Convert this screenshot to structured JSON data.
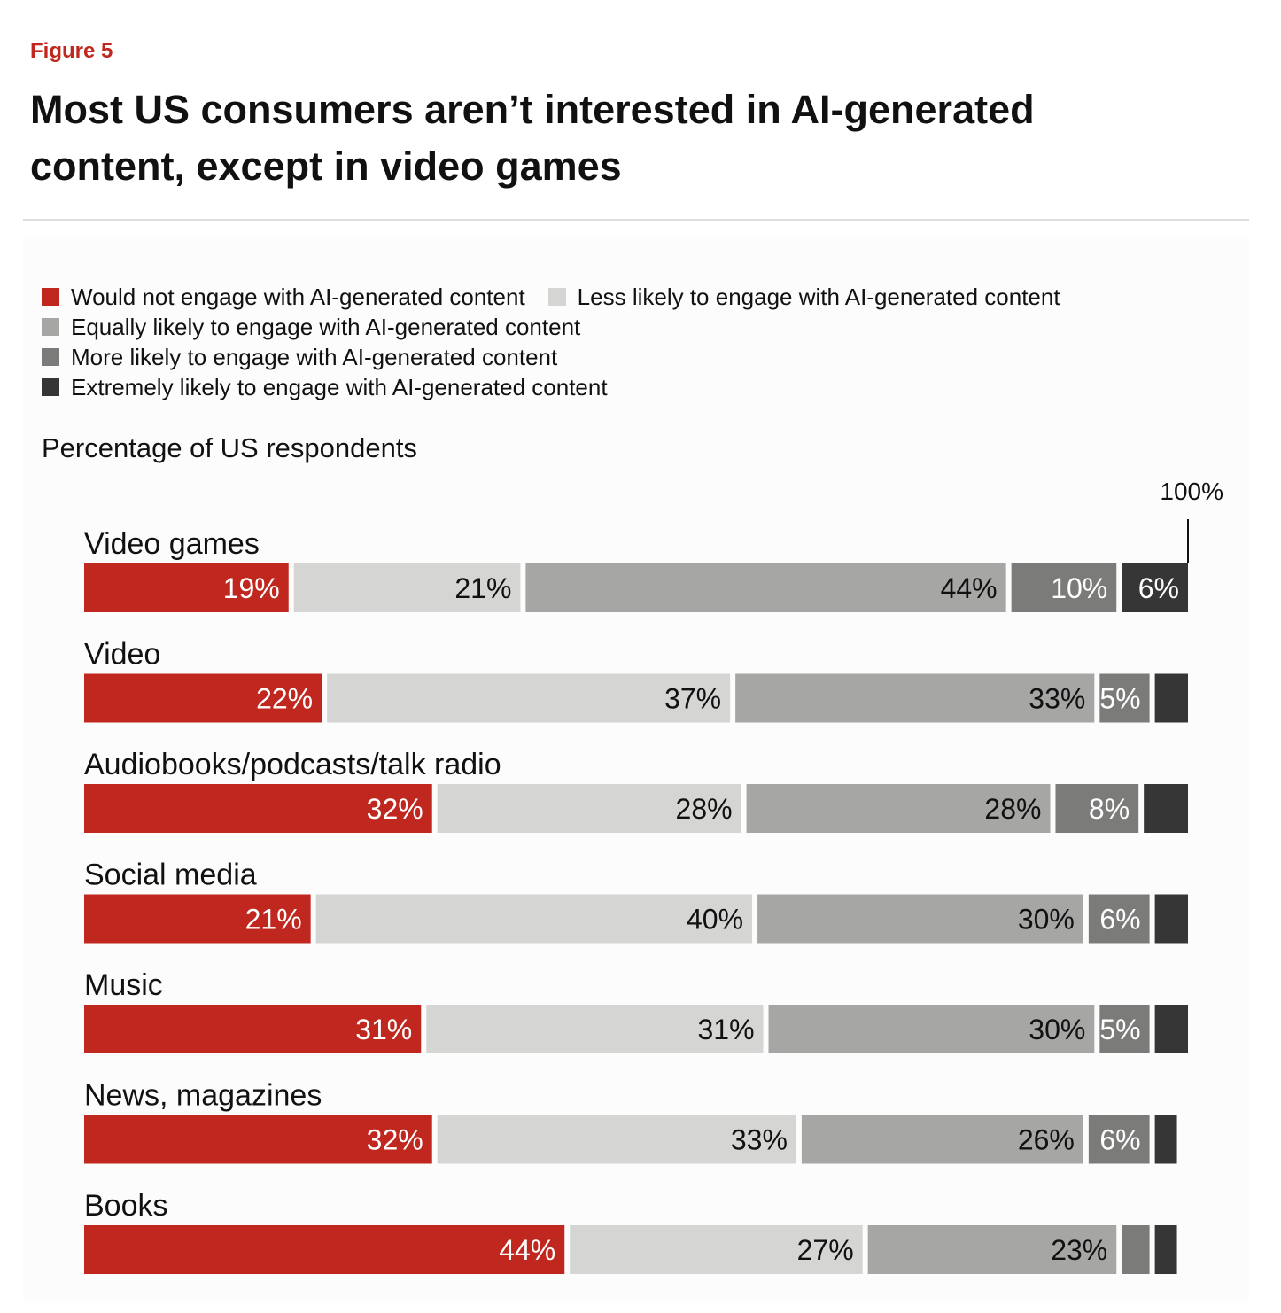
{
  "figure_label": "Figure 5",
  "title": "Most US consumers aren’t interested in AI-generated content, except in video games",
  "subtitle": "Percentage of US respondents",
  "colors": {
    "brand_red": "#c0271f",
    "rule": "#dedede"
  },
  "chart_data": {
    "type": "bar",
    "orientation": "horizontal",
    "stacked": true,
    "title": "Most US consumers aren’t interested in AI-generated content, except in video games",
    "ylabel": "Percentage of US respondents",
    "xlim": [
      0,
      100
    ],
    "total_marker_label": "100%",
    "legend_position": "top-left",
    "categories": [
      "Video games",
      "Video",
      "Audiobooks/podcasts/talk radio",
      "Social media",
      "Music",
      "News, magazines",
      "Books"
    ],
    "series": [
      {
        "name": "Would not engage with AI-generated content",
        "color": "#c0271f",
        "label_color": "#ffffff",
        "values": [
          19,
          22,
          32,
          21,
          31,
          32,
          44
        ],
        "labels": [
          "19%",
          "22%",
          "32%",
          "21%",
          "31%",
          "32%",
          "44%"
        ]
      },
      {
        "name": "Less likely to engage with AI-generated content",
        "color": "#d5d5d4",
        "label_color": "#111111",
        "values": [
          21,
          37,
          28,
          40,
          31,
          33,
          27
        ],
        "labels": [
          "21%",
          "37%",
          "28%",
          "40%",
          "31%",
          "33%",
          "27%"
        ]
      },
      {
        "name": "Equally likely to engage with AI-generated content",
        "color": "#a6a6a5",
        "label_color": "#111111",
        "values": [
          44,
          33,
          28,
          30,
          30,
          26,
          23
        ],
        "labels": [
          "44%",
          "33%",
          "28%",
          "30%",
          "30%",
          "26%",
          "23%"
        ]
      },
      {
        "name": "More likely to engage with AI-generated content",
        "color": "#7b7b7a",
        "label_color": "#ffffff",
        "values": [
          10,
          5,
          8,
          6,
          5,
          6,
          3
        ],
        "labels": [
          "10%",
          "5%",
          "8%",
          "6%",
          "5%",
          "6%",
          ""
        ]
      },
      {
        "name": "Extremely likely to engage with AI-generated content",
        "color": "#363636",
        "label_color": "#ffffff",
        "values": [
          6,
          3,
          4,
          3,
          3,
          2,
          2
        ],
        "labels": [
          "6%",
          "",
          "",
          "",
          "",
          "",
          ""
        ]
      }
    ]
  }
}
